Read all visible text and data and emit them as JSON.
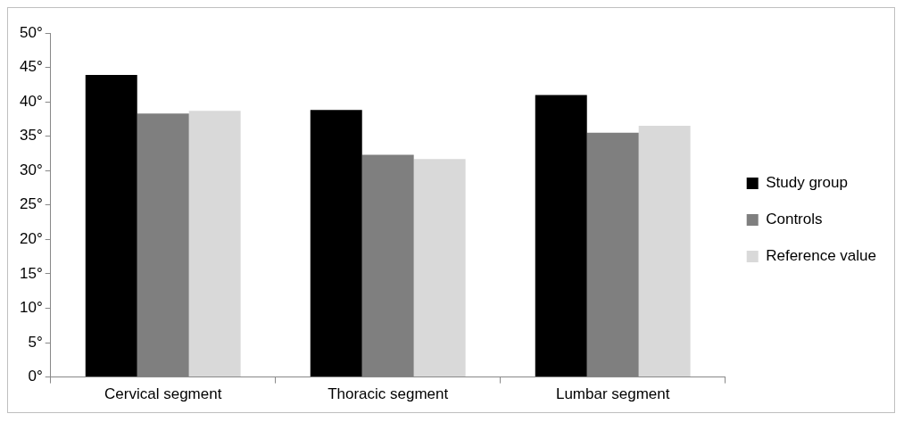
{
  "chart_data": {
    "type": "bar",
    "categories": [
      "Cervical segment",
      "Thoracic segment",
      "Lumbar segment"
    ],
    "series": [
      {
        "name": "Study group",
        "color": "#000000",
        "values": [
          43.9,
          38.8,
          41.0
        ]
      },
      {
        "name": "Controls",
        "color": "#7f7f7f",
        "values": [
          38.3,
          32.3,
          35.5
        ]
      },
      {
        "name": "Reference value",
        "color": "#d9d9d9",
        "values": [
          38.7,
          31.7,
          36.5
        ]
      }
    ],
    "ylim": [
      0,
      50
    ],
    "yticks": [
      {
        "value": 0,
        "label": "0°"
      },
      {
        "value": 5,
        "label": "5°"
      },
      {
        "value": 10,
        "label": "10°"
      },
      {
        "value": 15,
        "label": "15°"
      },
      {
        "value": 20,
        "label": "20°"
      },
      {
        "value": 25,
        "label": "25°"
      },
      {
        "value": 30,
        "label": "30°"
      },
      {
        "value": 35,
        "label": "35°"
      },
      {
        "value": 40,
        "label": "40°"
      },
      {
        "value": 45,
        "label": "45°"
      },
      {
        "value": 50,
        "label": "50°"
      }
    ],
    "grid": false,
    "legend": "right"
  }
}
